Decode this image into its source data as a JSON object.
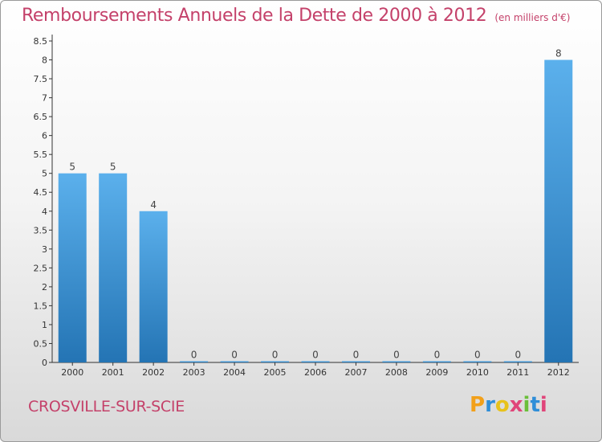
{
  "title": "Remboursements Annuels de la Dette de 2000 à 2012",
  "unit_note": "(en milliers d'€)",
  "city": "CROSVILLE-SUR-SCIE",
  "logo": {
    "letters": [
      "P",
      "r",
      "o",
      "x",
      "i",
      "t",
      "i"
    ],
    "colors": [
      "#f2a01a",
      "#2f8ed8",
      "#e8c21b",
      "#e0457a",
      "#6bbf3a",
      "#2f8ed8",
      "#e0457a"
    ]
  },
  "colors": {
    "bar_top": "#5bb0ec",
    "bar_bottom": "#2474b4",
    "title": "#c4416a",
    "axis": "#333333"
  },
  "chart_data": {
    "type": "bar",
    "categories": [
      "2000",
      "2001",
      "2002",
      "2003",
      "2004",
      "2005",
      "2006",
      "2007",
      "2008",
      "2009",
      "2010",
      "2011",
      "2012"
    ],
    "values": [
      5,
      5,
      4,
      0,
      0,
      0,
      0,
      0,
      0,
      0,
      0,
      0,
      8
    ],
    "data_labels": [
      "5",
      "5",
      "4",
      "0",
      "0",
      "0",
      "0",
      "0",
      "0",
      "0",
      "0",
      "0",
      "8"
    ],
    "ylim": [
      0,
      8.5
    ],
    "yticks": [
      "0",
      "0.5",
      "1",
      "1.5",
      "2",
      "2.5",
      "3",
      "3.5",
      "4",
      "4.5",
      "5",
      "5.5",
      "6",
      "6.5",
      "7",
      "7.5",
      "8",
      "8.5"
    ],
    "grid": false,
    "xlabel": "",
    "ylabel": ""
  }
}
